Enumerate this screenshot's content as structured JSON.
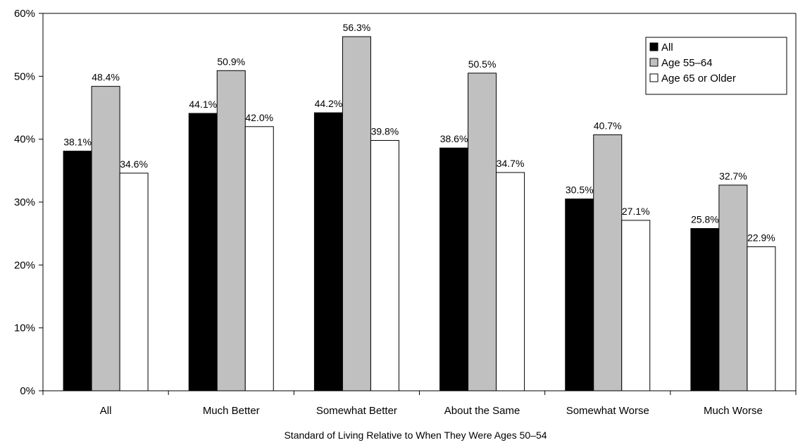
{
  "chart_data": {
    "type": "bar",
    "title": "",
    "xlabel": "Standard of Living Relative to When They Were Ages 50–54",
    "ylabel": "",
    "ylim": [
      0,
      60
    ],
    "yticks": [
      0,
      10,
      20,
      30,
      40,
      50,
      60
    ],
    "ytick_labels": [
      "0%",
      "10%",
      "20%",
      "30%",
      "40%",
      "50%",
      "60%"
    ],
    "grid": false,
    "legend_position": "top-right",
    "categories": [
      "All",
      "Much Better",
      "Somewhat Better",
      "About the Same",
      "Somewhat Worse",
      "Much Worse"
    ],
    "series": [
      {
        "name": "All",
        "color": "#000000",
        "values": [
          38.1,
          44.1,
          44.2,
          38.6,
          30.5,
          25.8
        ],
        "labels": [
          "38.1%",
          "44.1%",
          "44.2%",
          "38.6%",
          "30.5%",
          "25.8%"
        ]
      },
      {
        "name": "Age 55–64",
        "color": "#c0c0c0",
        "values": [
          48.4,
          50.9,
          56.3,
          50.5,
          40.7,
          32.7
        ],
        "labels": [
          "48.4%",
          "50.9%",
          "56.3%",
          "50.5%",
          "40.7%",
          "32.7%"
        ]
      },
      {
        "name": "Age 65 or Older",
        "color": "#ffffff",
        "values": [
          34.6,
          42.0,
          39.8,
          34.7,
          27.1,
          22.9
        ],
        "labels": [
          "34.6%",
          "42.0%",
          "39.8%",
          "34.7%",
          "27.1%",
          "22.9%"
        ]
      }
    ]
  }
}
